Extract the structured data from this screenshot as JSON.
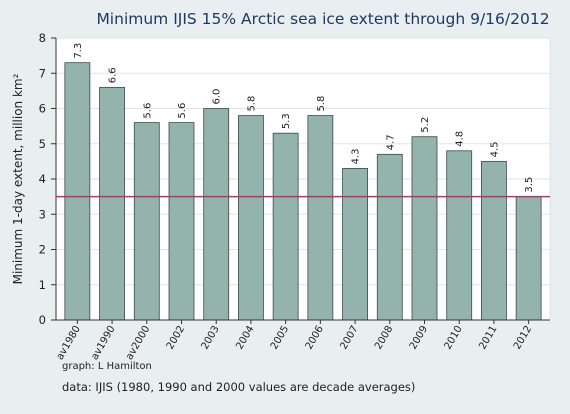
{
  "footer": {
    "credit": "graph: L Hamilton",
    "source": "data:  IJIS  (1980, 1990 and 2000 values are decade averages)"
  },
  "colors": {
    "background": "#e9eef1",
    "plot_background": "#ffffff",
    "bar_fill": "#95b3ad",
    "bar_stroke": "#3a4a47",
    "reference_line": "#b03a5a",
    "title": "#1e3a64"
  },
  "chart_data": {
    "type": "bar",
    "title": "Minimum IJIS 15% Arctic sea ice extent through 9/16/2012",
    "xlabel": "",
    "ylabel": "Minimum 1-day extent, million km²",
    "ylim": [
      0,
      8
    ],
    "yticks": [
      0,
      1,
      2,
      3,
      4,
      5,
      6,
      7,
      8
    ],
    "grid": true,
    "categories": [
      "av1980",
      "av1990",
      "av2000",
      "2002",
      "2003",
      "2004",
      "2005",
      "2006",
      "2007",
      "2008",
      "2009",
      "2010",
      "2011",
      "2012"
    ],
    "values": [
      7.3,
      6.6,
      5.6,
      5.6,
      6.0,
      5.8,
      5.3,
      5.8,
      4.3,
      4.7,
      5.2,
      4.8,
      4.5,
      3.5
    ],
    "value_labels": [
      "7.3",
      "6.6",
      "5.6",
      "5.6",
      "6.0",
      "5.8",
      "5.3",
      "5.8",
      "4.3",
      "4.7",
      "5.2",
      "4.8",
      "4.5",
      "3.5"
    ],
    "reference_line": 3.5
  }
}
